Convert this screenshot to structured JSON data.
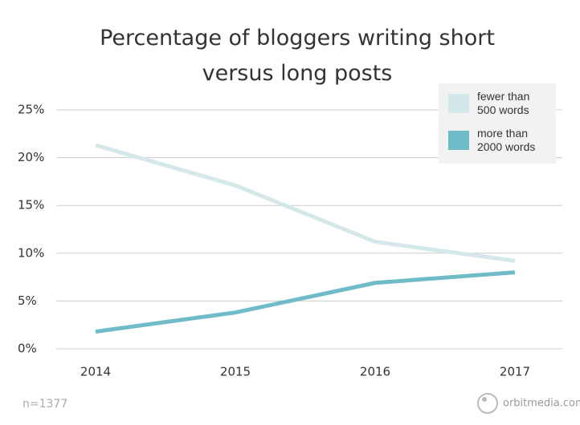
{
  "chart_data": {
    "type": "line",
    "title": "Percentage of bloggers writing short versus long posts",
    "categories": [
      "2014",
      "2015",
      "2016",
      "2017"
    ],
    "series": [
      {
        "name": "fewer than 500 words",
        "color": "#d4e8ea",
        "values": [
          21.3,
          17.1,
          11.2,
          9.2
        ]
      },
      {
        "name": "more than 2000 words",
        "color": "#6fbcc8",
        "values": [
          1.8,
          3.8,
          6.9,
          8.0
        ]
      }
    ],
    "ylim": [
      0,
      25
    ],
    "yticks": [
      {
        "value": 0,
        "label": "0%"
      },
      {
        "value": 5,
        "label": "5%"
      },
      {
        "value": 10,
        "label": "10%"
      },
      {
        "value": 15,
        "label": "15%"
      },
      {
        "value": 20,
        "label": "20%"
      },
      {
        "value": 25,
        "label": "25%"
      }
    ],
    "grid": true,
    "legend": "top-right",
    "note": "n=1377",
    "source": "orbitmedia.com"
  }
}
